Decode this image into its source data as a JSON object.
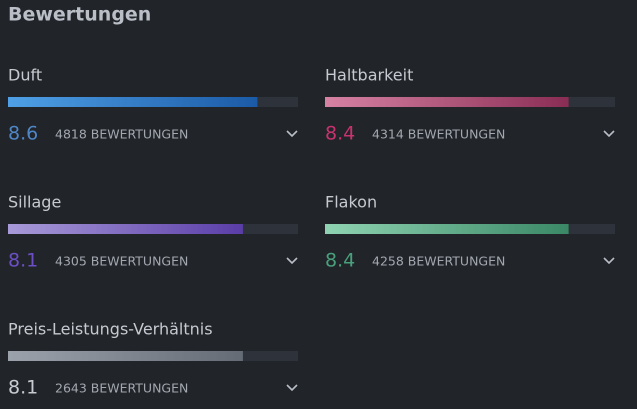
{
  "header": {
    "title": "Bewertungen"
  },
  "chart_data": {
    "type": "bar",
    "xlim": [
      0,
      10
    ],
    "items": [
      {
        "name": "Duft",
        "value": 8.6,
        "reviews": "4818 BEWERTUNGEN",
        "colors": [
          "#4fa0e6",
          "#1b5aa6"
        ],
        "score_color": "#4f86c6"
      },
      {
        "name": "Haltbarkeit",
        "value": 8.4,
        "reviews": "4314 BEWERTUNGEN",
        "colors": [
          "#d682a3",
          "#8a2d55"
        ],
        "score_color": "#c8336f"
      },
      {
        "name": "Sillage",
        "value": 8.1,
        "reviews": "4305 BEWERTUNGEN",
        "colors": [
          "#a89ad8",
          "#5a3da8"
        ],
        "score_color": "#6c4fc4"
      },
      {
        "name": "Flakon",
        "value": 8.4,
        "reviews": "4258 BEWERTUNGEN",
        "colors": [
          "#8fd3b2",
          "#3a8866"
        ],
        "score_color": "#4aa07c"
      },
      {
        "name": "Preis-Leistungs-Verhältnis",
        "value": 8.1,
        "reviews": "2643 BEWERTUNGEN",
        "colors": [
          "#9ca2ab",
          "#656b75"
        ],
        "score_color": "#c8ccd2"
      }
    ]
  }
}
